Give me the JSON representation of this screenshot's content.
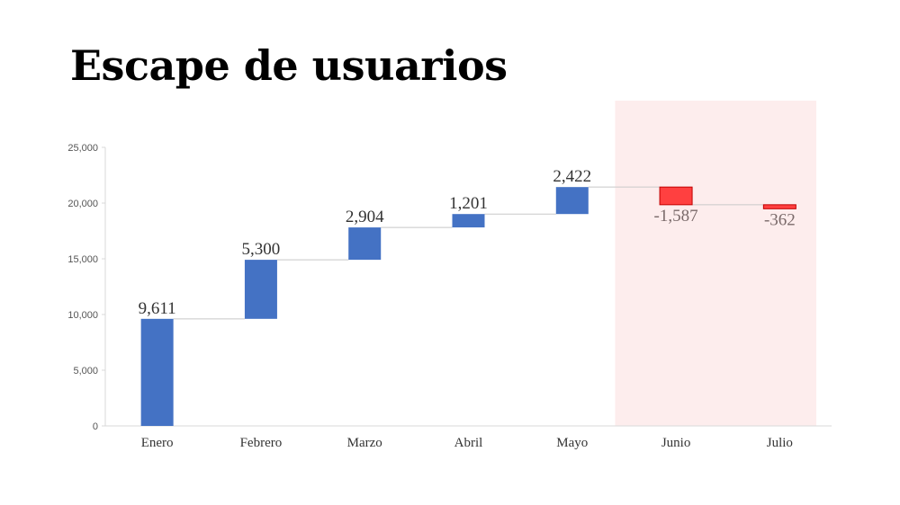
{
  "slide": {
    "title": "Escape de usuarios"
  },
  "chart_data": {
    "type": "waterfall",
    "title": "Escape de usuarios",
    "categories": [
      "Enero",
      "Febrero",
      "Marzo",
      "Abril",
      "Mayo",
      "Junio",
      "Julio"
    ],
    "values": [
      9611,
      5300,
      2904,
      1201,
      2422,
      -1587,
      -362
    ],
    "labels": [
      "9,611",
      "5,300",
      "2,904",
      "1,201",
      "2,422",
      "-1,587",
      "-362"
    ],
    "ylim": [
      0,
      25000
    ],
    "yticks": [
      0,
      5000,
      10000,
      15000,
      20000,
      25000
    ],
    "ytick_labels": [
      "0",
      "5,000",
      "10,000",
      "15,000",
      "20,000",
      "25,000"
    ],
    "highlight_categories": [
      "Junio",
      "Julio"
    ],
    "colors": {
      "increase": "#4472c4",
      "decrease": "#ff4040",
      "decrease_border": "#c00000",
      "highlight_band": "#fdeded",
      "connector": "#c8c8c8",
      "axis": "#d9d9d9"
    }
  }
}
